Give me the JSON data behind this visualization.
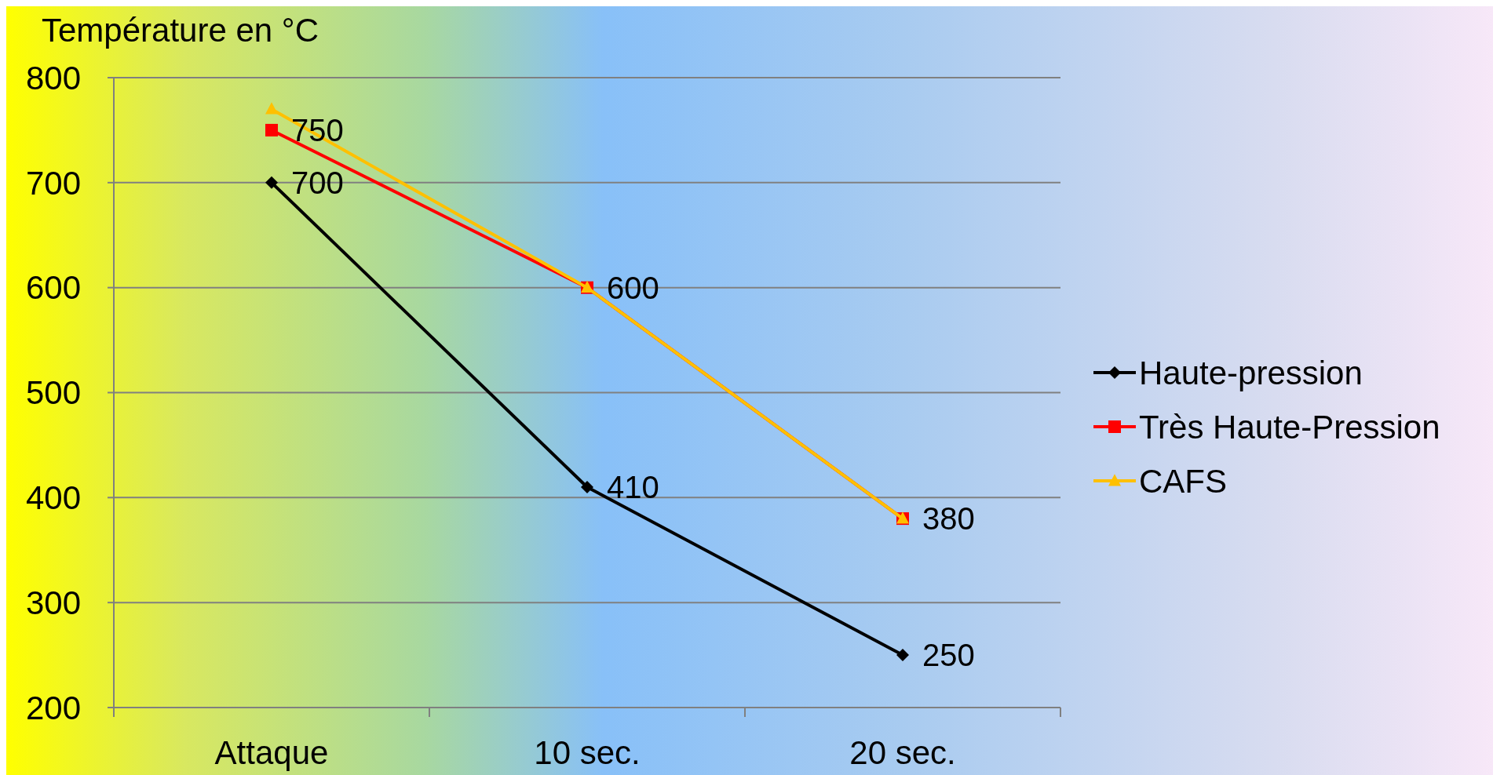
{
  "chart_data": {
    "type": "line",
    "ylabel": "Température en °C",
    "categories": [
      "Attaque",
      "10 sec.",
      "20 sec."
    ],
    "ylim": [
      200,
      800
    ],
    "yticks": [
      200,
      300,
      400,
      500,
      600,
      700,
      800
    ],
    "grid": "y",
    "legend": "right",
    "series": [
      {
        "name": "Haute-pression",
        "color": "#000000",
        "marker": "diamond",
        "values": [
          700,
          410,
          250
        ],
        "value_labels": [
          "700",
          "410",
          "250"
        ]
      },
      {
        "name": "Très Haute-Pression",
        "color": "#ff0000",
        "marker": "square",
        "values": [
          750,
          600,
          380
        ],
        "value_labels": [
          "750",
          "600",
          "380"
        ]
      },
      {
        "name": "CAFS",
        "color": "#ffc000",
        "marker": "triangle",
        "values": [
          770,
          600,
          380
        ]
      }
    ]
  }
}
